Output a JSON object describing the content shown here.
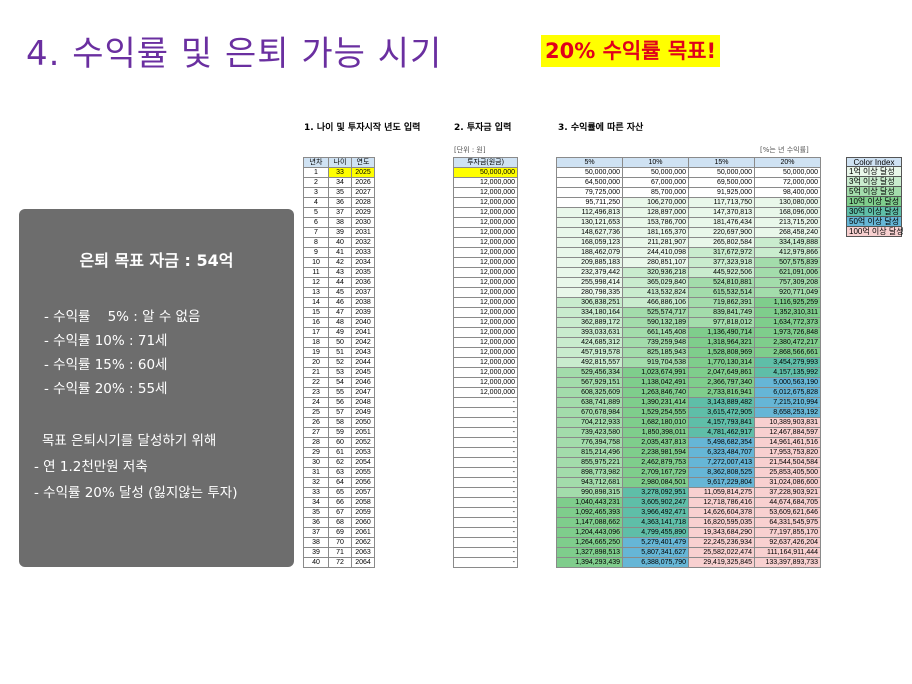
{
  "slide": {
    "title": "4. 수익률 및 은퇴 가능 시기",
    "goal_label": "20% 수익률 목표!"
  },
  "summary": {
    "title": "은퇴 목표 자금 : 54억",
    "lines": [
      "- 수익률    5% : 알 수 없음",
      "- 수익률 10% : 71세",
      "- 수익률 15% : 60세",
      "- 수익률 20% : 55세"
    ],
    "heading2": "목표 은퇴시기를 달성하기 위해",
    "lines2": [
      "- 연 1.2천만원 저축",
      "- 수익률 20% 달성 (잃지않는 투자)"
    ]
  },
  "sections": {
    "s1": "1. 나이 및 투자시작 년도 입력",
    "s2": "2. 투자금 입력",
    "s3": "3. 수익률에 따른 자산",
    "unit1": "[단위 : 원]",
    "unit2": "[%는 년 수익률]"
  },
  "table": {
    "headers": {
      "year_no": "년차",
      "age": "나이",
      "year": "연도",
      "invest": "투자금(원금)",
      "r5": "5%",
      "r10": "10%",
      "r15": "15%",
      "r20": "20%"
    },
    "rows": [
      [
        "1",
        "33",
        "2025",
        "50,000,000",
        "50,000,000",
        "50,000,000",
        "50,000,000",
        "50,000,000"
      ],
      [
        "2",
        "34",
        "2026",
        "12,000,000",
        "64,500,000",
        "67,000,000",
        "69,500,000",
        "72,000,000"
      ],
      [
        "3",
        "35",
        "2027",
        "12,000,000",
        "79,725,000",
        "85,700,000",
        "91,925,000",
        "98,400,000"
      ],
      [
        "4",
        "36",
        "2028",
        "12,000,000",
        "95,711,250",
        "106,270,000",
        "117,713,750",
        "130,080,000"
      ],
      [
        "5",
        "37",
        "2029",
        "12,000,000",
        "112,496,813",
        "128,897,000",
        "147,370,813",
        "168,096,000"
      ],
      [
        "6",
        "38",
        "2030",
        "12,000,000",
        "130,121,653",
        "153,786,700",
        "181,476,434",
        "213,715,200"
      ],
      [
        "7",
        "39",
        "2031",
        "12,000,000",
        "148,627,736",
        "181,165,370",
        "220,697,900",
        "268,458,240"
      ],
      [
        "8",
        "40",
        "2032",
        "12,000,000",
        "168,059,123",
        "211,281,907",
        "265,802,584",
        "334,149,888"
      ],
      [
        "9",
        "41",
        "2033",
        "12,000,000",
        "188,462,079",
        "244,410,098",
        "317,672,972",
        "412,979,866"
      ],
      [
        "10",
        "42",
        "2034",
        "12,000,000",
        "209,885,183",
        "280,851,107",
        "377,323,918",
        "507,575,839"
      ],
      [
        "11",
        "43",
        "2035",
        "12,000,000",
        "232,379,442",
        "320,936,218",
        "445,922,506",
        "621,091,006"
      ],
      [
        "12",
        "44",
        "2036",
        "12,000,000",
        "255,998,414",
        "365,029,840",
        "524,810,881",
        "757,309,208"
      ],
      [
        "13",
        "45",
        "2037",
        "12,000,000",
        "280,798,335",
        "413,532,824",
        "615,532,514",
        "920,771,049"
      ],
      [
        "14",
        "46",
        "2038",
        "12,000,000",
        "306,838,251",
        "466,886,106",
        "719,862,391",
        "1,116,925,259"
      ],
      [
        "15",
        "47",
        "2039",
        "12,000,000",
        "334,180,164",
        "525,574,717",
        "839,841,749",
        "1,352,310,311"
      ],
      [
        "16",
        "48",
        "2040",
        "12,000,000",
        "362,889,172",
        "590,132,189",
        "977,818,012",
        "1,634,772,373"
      ],
      [
        "17",
        "49",
        "2041",
        "12,000,000",
        "393,033,631",
        "661,145,408",
        "1,136,490,714",
        "1,973,726,848"
      ],
      [
        "18",
        "50",
        "2042",
        "12,000,000",
        "424,685,312",
        "739,259,948",
        "1,318,964,321",
        "2,380,472,217"
      ],
      [
        "19",
        "51",
        "2043",
        "12,000,000",
        "457,919,578",
        "825,185,943",
        "1,528,808,969",
        "2,868,566,661"
      ],
      [
        "20",
        "52",
        "2044",
        "12,000,000",
        "492,815,557",
        "919,704,538",
        "1,770,130,314",
        "3,454,279,993"
      ],
      [
        "21",
        "53",
        "2045",
        "12,000,000",
        "529,456,334",
        "1,023,674,991",
        "2,047,649,861",
        "4,157,135,992"
      ],
      [
        "22",
        "54",
        "2046",
        "12,000,000",
        "567,929,151",
        "1,138,042,491",
        "2,366,797,340",
        "5,000,563,190"
      ],
      [
        "23",
        "55",
        "2047",
        "12,000,000",
        "608,325,609",
        "1,263,846,740",
        "2,733,816,941",
        "6,012,675,828"
      ],
      [
        "24",
        "56",
        "2048",
        "-",
        "638,741,889",
        "1,390,231,414",
        "3,143,889,482",
        "7,215,210,994"
      ],
      [
        "25",
        "57",
        "2049",
        "-",
        "670,678,984",
        "1,529,254,555",
        "3,615,472,905",
        "8,658,253,192"
      ],
      [
        "26",
        "58",
        "2050",
        "-",
        "704,212,933",
        "1,682,180,010",
        "4,157,793,841",
        "10,389,903,831"
      ],
      [
        "27",
        "59",
        "2051",
        "-",
        "739,423,580",
        "1,850,398,011",
        "4,781,462,917",
        "12,467,884,597"
      ],
      [
        "28",
        "60",
        "2052",
        "-",
        "776,394,758",
        "2,035,437,813",
        "5,498,682,354",
        "14,961,461,516"
      ],
      [
        "29",
        "61",
        "2053",
        "-",
        "815,214,496",
        "2,238,981,594",
        "6,323,484,707",
        "17,953,753,820"
      ],
      [
        "30",
        "62",
        "2054",
        "-",
        "855,975,221",
        "2,462,879,753",
        "7,272,007,413",
        "21,544,504,584"
      ],
      [
        "31",
        "63",
        "2055",
        "-",
        "898,773,982",
        "2,709,167,729",
        "8,362,808,525",
        "25,853,405,500"
      ],
      [
        "32",
        "64",
        "2056",
        "-",
        "943,712,681",
        "2,980,084,501",
        "9,617,229,804",
        "31,024,086,600"
      ],
      [
        "33",
        "65",
        "2057",
        "-",
        "990,898,315",
        "3,278,092,951",
        "11,059,814,275",
        "37,228,903,921"
      ],
      [
        "34",
        "66",
        "2058",
        "-",
        "1,040,443,231",
        "3,605,902,247",
        "12,718,786,416",
        "44,674,684,705"
      ],
      [
        "35",
        "67",
        "2059",
        "-",
        "1,092,465,393",
        "3,966,492,471",
        "14,626,604,378",
        "53,609,621,646"
      ],
      [
        "36",
        "68",
        "2060",
        "-",
        "1,147,088,662",
        "4,363,141,718",
        "16,820,595,035",
        "64,331,545,975"
      ],
      [
        "37",
        "69",
        "2061",
        "-",
        "1,204,443,096",
        "4,799,455,890",
        "19,343,684,290",
        "77,197,855,170"
      ],
      [
        "38",
        "70",
        "2062",
        "-",
        "1,264,665,250",
        "5,279,401,479",
        "22,245,236,934",
        "92,637,426,204"
      ],
      [
        "39",
        "71",
        "2063",
        "-",
        "1,327,898,513",
        "5,807,341,627",
        "25,582,022,474",
        "111,164,911,444"
      ],
      [
        "40",
        "72",
        "2064",
        "-",
        "1,394,293,439",
        "6,388,075,790",
        "29,419,325,845",
        "133,397,893,733"
      ]
    ]
  },
  "color_index": {
    "title": "Color Index",
    "items": [
      {
        "label": "1억 이상 달성",
        "color": "#e9f7ea"
      },
      {
        "label": "3억 이상 달성",
        "color": "#c9ecce"
      },
      {
        "label": "5억 이상 달성",
        "color": "#a3dcab"
      },
      {
        "label": "10억 이상 달성",
        "color": "#7fcd8c"
      },
      {
        "label": "30억 이상 달성",
        "color": "#5fbea8"
      },
      {
        "label": "50억 이상 달성",
        "color": "#66b6d6"
      },
      {
        "label": "100억 이상 달성",
        "color": "#f8d0d0"
      }
    ]
  },
  "colors": {
    "title": "#6a2fa0",
    "goal_bg": "#ffff00",
    "goal_text": "#e0001b",
    "summary_bg": "#6d6d6d",
    "header_bg": "#cfe2f3",
    "highlight": "#ffff00"
  }
}
